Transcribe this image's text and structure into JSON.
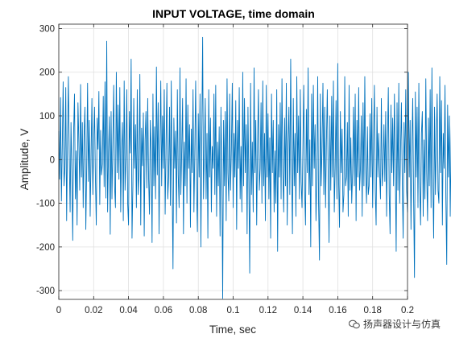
{
  "chart_data": {
    "type": "line",
    "title": "INPUT VOLTAGE, time domain",
    "xlabel": "Time, sec",
    "ylabel": "Amplitude, V",
    "xlim": [
      0,
      0.2
    ],
    "ylim": [
      -320,
      310
    ],
    "x_ticks": [
      0,
      0.02,
      0.04,
      0.06,
      0.08,
      0.1,
      0.12,
      0.14,
      0.16,
      0.18,
      0.2
    ],
    "x_tick_labels": [
      "0",
      "0.02",
      "0.04",
      "0.06",
      "0.08",
      "0.1",
      "0.12",
      "0.14",
      "0.16",
      "0.18",
      "0.2"
    ],
    "y_ticks": [
      -300,
      -200,
      -100,
      0,
      100,
      200,
      300
    ],
    "y_tick_labels": [
      "-300",
      "-200",
      "-100",
      "0",
      "100",
      "200",
      "300"
    ],
    "grid": true,
    "line_color": "#0072bd",
    "series": [
      {
        "x_start": 0,
        "x_step": 0.0005,
        "values": [
          65,
          -45,
          142,
          -95,
          30,
          178,
          -60,
          -20,
          165,
          -140,
          45,
          190,
          10,
          -120,
          85,
          -30,
          -185,
          60,
          150,
          -90,
          20,
          -150,
          130,
          40,
          -70,
          172,
          -40,
          85,
          -110,
          55,
          120,
          -160,
          -20,
          175,
          -50,
          90,
          -130,
          10,
          140,
          -80,
          38,
          120,
          -42,
          -150,
          95,
          24,
          156,
          -103,
          67,
          -35,
          -10,
          145,
          -62,
          178,
          -88,
          271,
          -120,
          15,
          98,
          -171,
          110,
          -90,
          40,
          170,
          -60,
          -110,
          200,
          -30,
          125,
          -45,
          165,
          -120,
          20,
          85,
          -140,
          180,
          -70,
          5,
          160,
          -100,
          -150,
          110,
          15,
          230,
          -180,
          -60,
          140,
          -20,
          80,
          -110,
          160,
          -80,
          -30,
          195,
          -150,
          72,
          -14,
          107,
          -175,
          45,
          110,
          -65,
          140,
          -40,
          -125,
          90,
          20,
          -190,
          150,
          -60,
          75,
          -90,
          212,
          -35,
          130,
          -170,
          15,
          180,
          -60,
          100,
          -20,
          160,
          -125,
          35,
          175,
          -90,
          -40,
          120,
          -105,
          180,
          -50,
          -250,
          95,
          -20,
          65,
          -145,
          160,
          -35,
          -110,
          210,
          -80,
          20,
          140,
          -170,
          40,
          -60,
          185,
          -100,
          125,
          -20,
          80,
          -155,
          70,
          -30,
          160,
          -120,
          15,
          180,
          -60,
          -165,
          105,
          -40,
          150,
          -200,
          55,
          280,
          -90,
          20,
          140,
          -90,
          60,
          -180,
          160,
          -40,
          95,
          -120,
          30,
          -20,
          150,
          -80,
          170,
          -130,
          40,
          -60,
          75,
          -175,
          120,
          -20,
          -318,
          90,
          -60,
          110,
          -140,
          185,
          -30,
          -95,
          150,
          -70,
          25,
          175,
          -110,
          60,
          -40,
          135,
          -160,
          90,
          -20,
          165,
          -90,
          30,
          -120,
          200,
          -60,
          140,
          -30,
          80,
          -170,
          120,
          -50,
          -260,
          175,
          -80,
          40,
          -120,
          210,
          -30,
          90,
          -150,
          35,
          160,
          -70,
          -20,
          130,
          -100,
          180,
          -60,
          60,
          -140,
          170,
          -40,
          105,
          -90,
          50,
          -180,
          150,
          -30,
          90,
          -120,
          20,
          -100,
          160,
          -210,
          80,
          -40,
          130,
          -90,
          185,
          -30,
          -120,
          95,
          -60,
          175,
          -150,
          40,
          120,
          -80,
          230,
          -20,
          -170,
          140,
          -60,
          60,
          -130,
          190,
          -30,
          100,
          -90,
          160,
          -50,
          -110,
          25,
          170,
          -70,
          -150,
          115,
          -30,
          210,
          -80,
          45,
          -200,
          150,
          -60,
          170,
          -20,
          80,
          -140,
          -40,
          190,
          -100,
          -230,
          150,
          -60,
          30,
          175,
          -80,
          120,
          -110,
          40,
          160,
          -30,
          -190,
          100,
          -70,
          145,
          -40,
          180,
          -120,
          -20,
          135,
          -90,
          220,
          -50,
          -155,
          110,
          -30,
          70,
          -120,
          -80,
          190,
          -60,
          -40,
          85,
          -130,
          170,
          -70,
          50,
          -100,
          -30,
          120,
          -60,
          150,
          -140,
          90,
          -40,
          165,
          -70,
          -20,
          100,
          -130,
          130,
          -60,
          190,
          -30,
          -100,
          75,
          -80,
          -60,
          105,
          -40,
          140,
          -110,
          40,
          170,
          -70,
          -150,
          120,
          -40,
          60,
          -30,
          -90,
          140,
          -60,
          -20,
          80,
          -50,
          110,
          -130,
          40,
          165,
          -80,
          -170,
          125,
          -30,
          95,
          -60,
          150,
          -20,
          -210,
          130,
          -70,
          175,
          -100,
          20,
          130,
          -50,
          -180,
          85,
          -30,
          160,
          -70,
          -120,
          200,
          -40,
          90,
          -160,
          30,
          140,
          -90,
          -270,
          155,
          -40,
          120,
          -110,
          175,
          -60,
          -150,
          60,
          110,
          -130,
          45,
          -90,
          185,
          -30,
          -140,
          95,
          -60,
          160,
          -110,
          210,
          -40,
          -180,
          120,
          -80,
          45,
          150,
          -70,
          -100,
          190,
          -30,
          135,
          -150,
          60,
          -20,
          170,
          -90,
          -240,
          125,
          -40,
          100,
          -130,
          40,
          175,
          -80,
          -60,
          150,
          -30,
          90,
          -120,
          190,
          -60,
          -90,
          145,
          -20,
          80,
          -110,
          165,
          -40,
          -70,
          205,
          -100,
          -150,
          130,
          -30,
          60,
          200,
          -90,
          20,
          -200,
          135,
          -40,
          240
        ]
      }
    ]
  },
  "watermark": {
    "text": "扬声器设计与仿真"
  }
}
